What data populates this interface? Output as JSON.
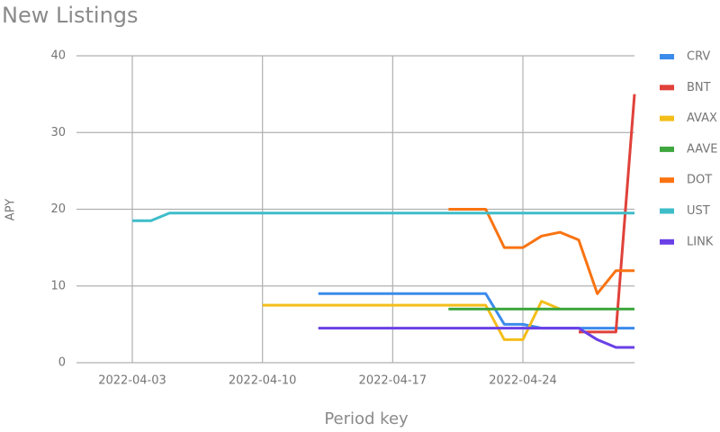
{
  "chart_data": {
    "type": "line",
    "title": "New Listings",
    "y_label": "APY",
    "x_label": "Period key",
    "x": [
      "2022-04-03",
      "2022-04-04",
      "2022-04-05",
      "2022-04-06",
      "2022-04-07",
      "2022-04-08",
      "2022-04-09",
      "2022-04-10",
      "2022-04-11",
      "2022-04-12",
      "2022-04-13",
      "2022-04-14",
      "2022-04-15",
      "2022-04-16",
      "2022-04-17",
      "2022-04-18",
      "2022-04-19",
      "2022-04-20",
      "2022-04-21",
      "2022-04-22",
      "2022-04-23",
      "2022-04-24",
      "2022-04-25",
      "2022-04-26",
      "2022-04-27",
      "2022-04-28",
      "2022-04-29",
      "2022-04-30"
    ],
    "series": [
      {
        "name": "CRV",
        "color": "#3b8beb",
        "values": [
          null,
          null,
          null,
          null,
          null,
          null,
          null,
          null,
          null,
          null,
          9,
          9,
          9,
          9,
          9,
          9,
          9,
          9,
          9,
          9,
          5,
          5,
          4.5,
          4.5,
          4.5,
          4.5,
          4.5,
          4.5
        ]
      },
      {
        "name": "BNT",
        "color": "#e0413a",
        "values": [
          null,
          null,
          null,
          null,
          null,
          null,
          null,
          null,
          null,
          null,
          null,
          null,
          null,
          null,
          null,
          null,
          null,
          null,
          null,
          null,
          null,
          null,
          null,
          null,
          4,
          4,
          4,
          35
        ]
      },
      {
        "name": "AVAX",
        "color": "#f4be1a",
        "values": [
          null,
          null,
          null,
          null,
          null,
          null,
          null,
          7.5,
          7.5,
          7.5,
          7.5,
          7.5,
          7.5,
          7.5,
          7.5,
          7.5,
          7.5,
          7.5,
          7.5,
          7.5,
          3,
          3,
          8,
          7,
          null,
          null,
          null,
          null
        ]
      },
      {
        "name": "AAVE",
        "color": "#3ea63e",
        "values": [
          null,
          null,
          null,
          null,
          null,
          null,
          null,
          null,
          null,
          null,
          null,
          null,
          null,
          null,
          null,
          null,
          null,
          7,
          7,
          7,
          7,
          7,
          7,
          7,
          7,
          7,
          7,
          7
        ]
      },
      {
        "name": "DOT",
        "color": "#f97312",
        "values": [
          null,
          null,
          null,
          null,
          null,
          null,
          null,
          null,
          null,
          null,
          null,
          null,
          null,
          null,
          null,
          null,
          null,
          20,
          20,
          20,
          15,
          15,
          16.5,
          17,
          16,
          9,
          12,
          12
        ]
      },
      {
        "name": "UST",
        "color": "#3ebdc9",
        "values": [
          18.5,
          18.5,
          19.5,
          19.5,
          19.5,
          19.5,
          19.5,
          19.5,
          19.5,
          19.5,
          19.5,
          19.5,
          19.5,
          19.5,
          19.5,
          19.5,
          19.5,
          19.5,
          19.5,
          19.5,
          19.5,
          19.5,
          19.5,
          19.5,
          19.5,
          19.5,
          19.5,
          19.5
        ]
      },
      {
        "name": "LINK",
        "color": "#6a40e6",
        "values": [
          null,
          null,
          null,
          null,
          null,
          null,
          null,
          null,
          null,
          null,
          4.5,
          4.5,
          4.5,
          4.5,
          4.5,
          4.5,
          4.5,
          4.5,
          4.5,
          4.5,
          4.5,
          4.5,
          4.5,
          4.5,
          4.5,
          3,
          2,
          2
        ]
      }
    ],
    "xlim": [
      "2022-03-31",
      "2022-04-30"
    ],
    "xticks": [
      "2022-04-03",
      "2022-04-10",
      "2022-04-17",
      "2022-04-24"
    ],
    "ylim": [
      0,
      40
    ],
    "yticks": [
      0,
      10,
      20,
      30,
      40
    ],
    "grid": true,
    "legend": "right"
  }
}
